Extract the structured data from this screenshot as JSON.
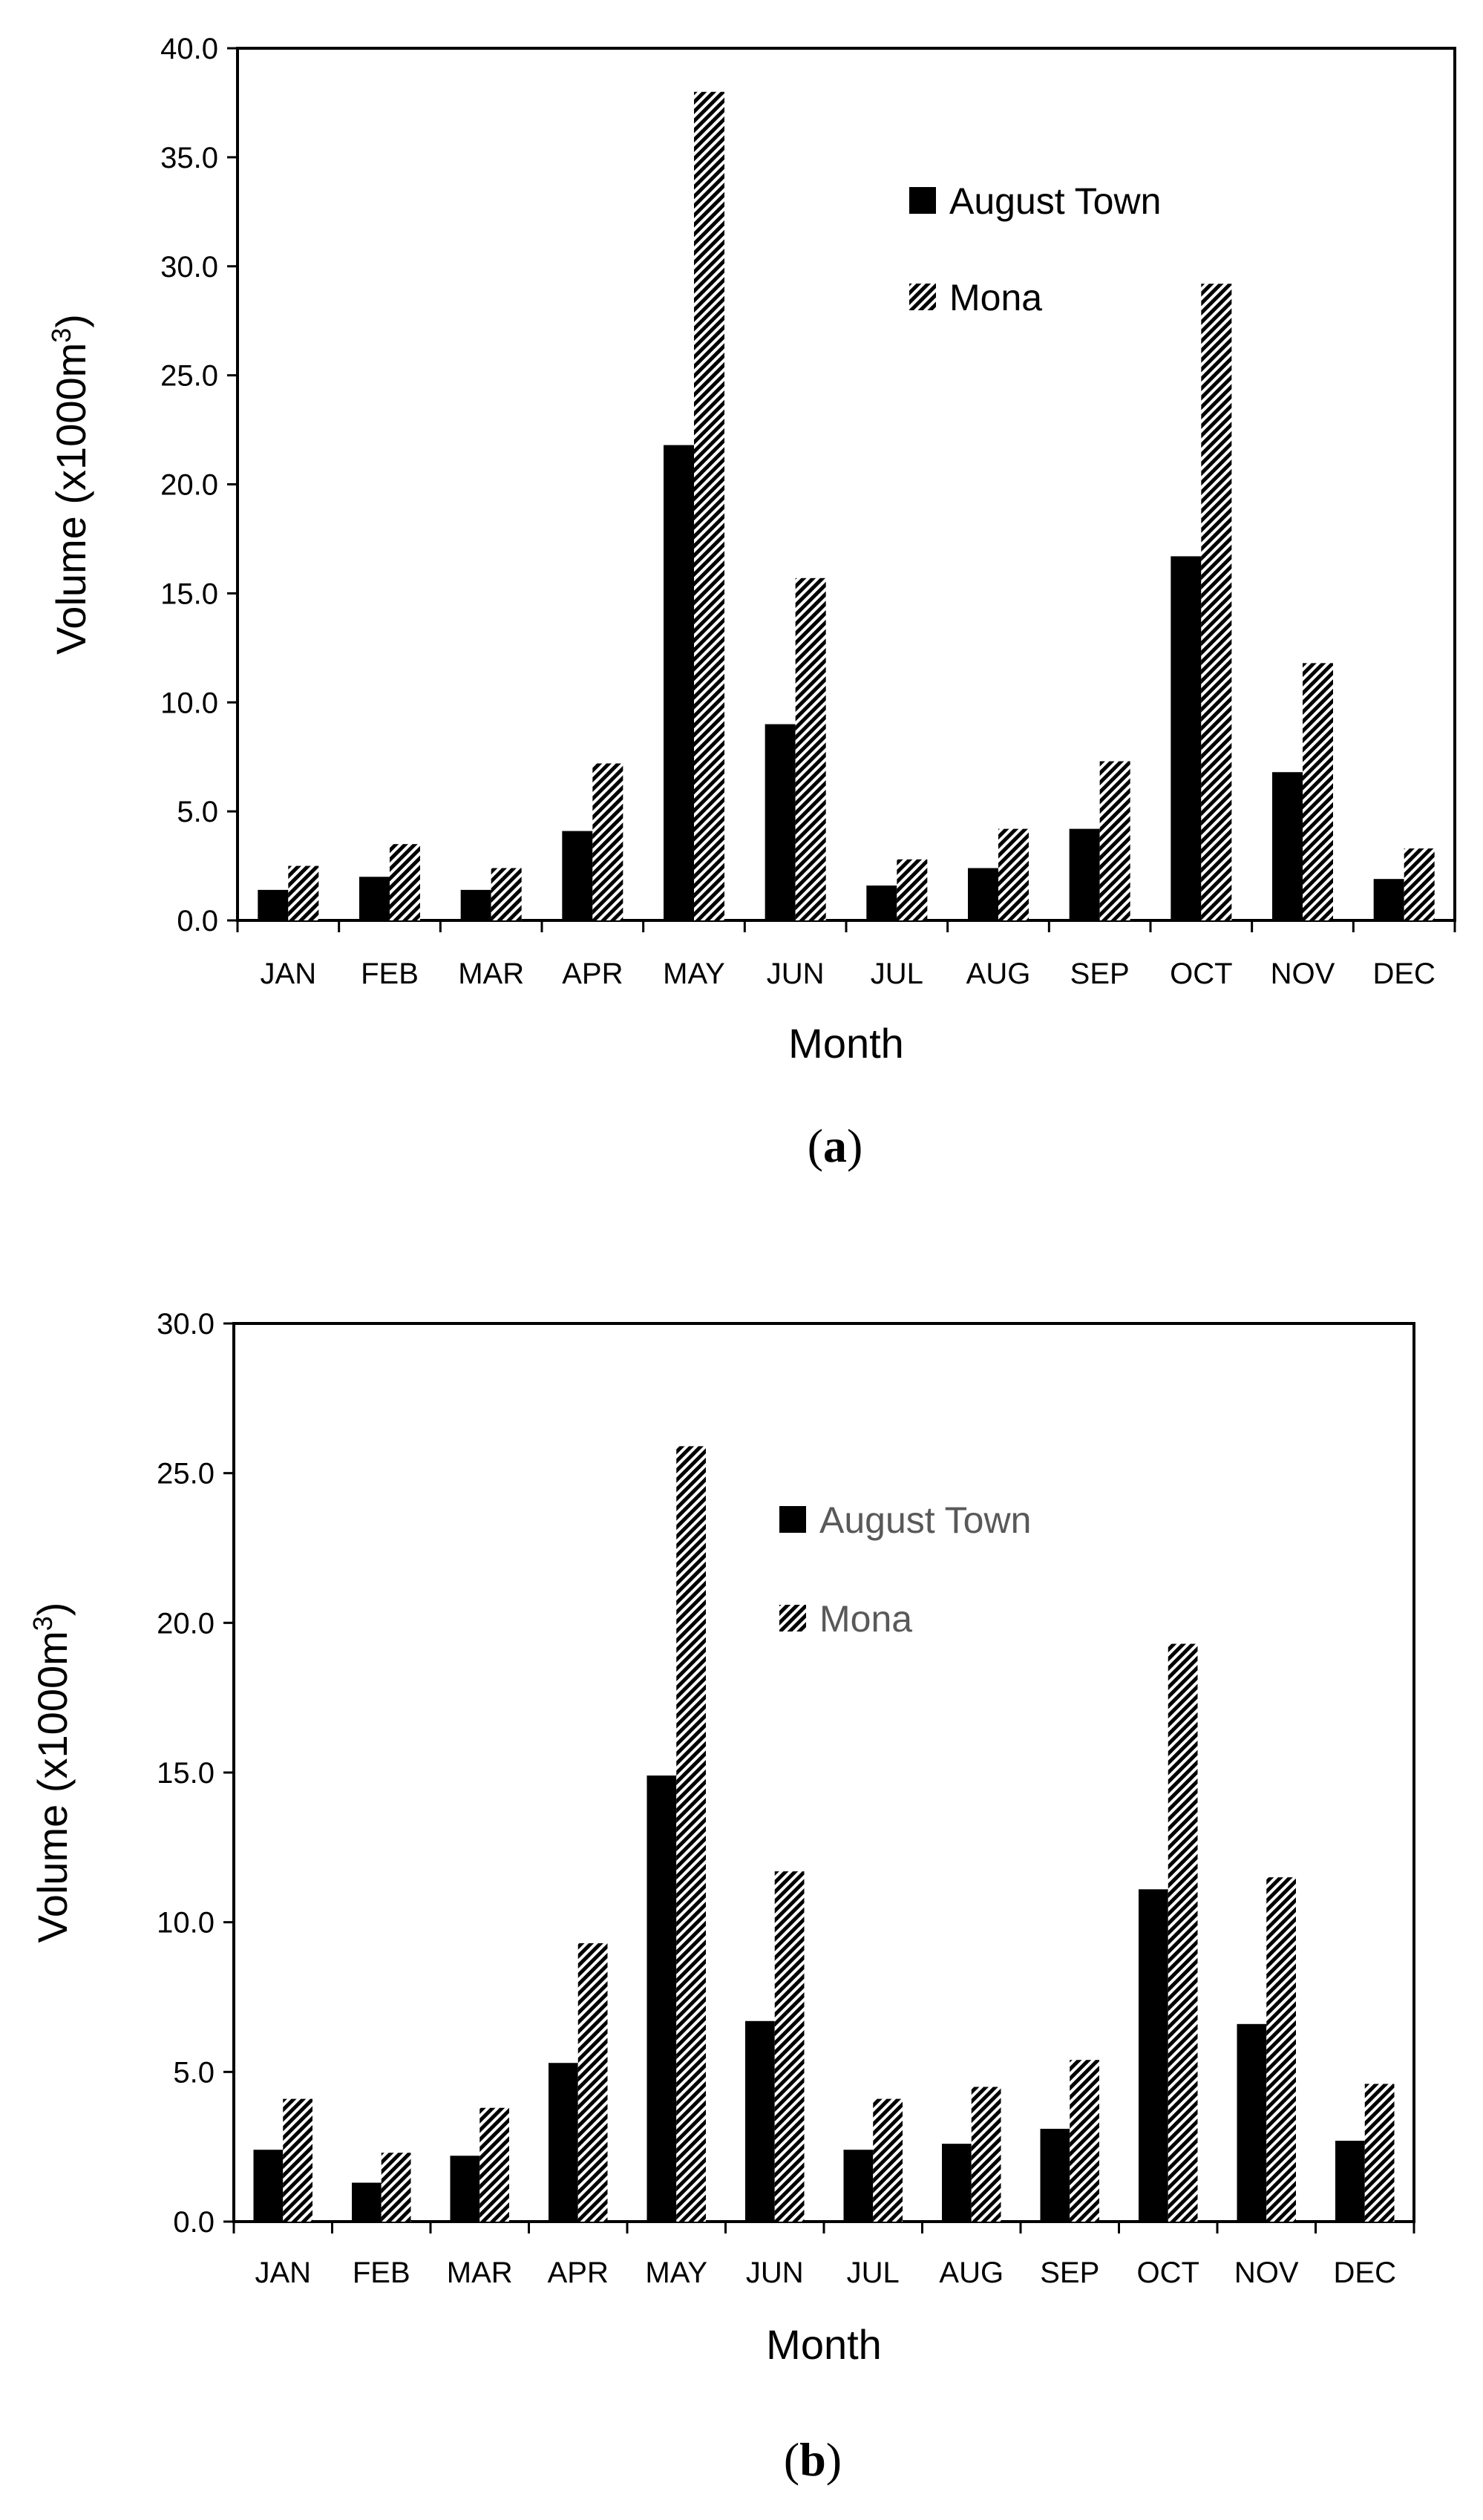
{
  "chart_data": [
    {
      "type": "bar",
      "panel_label": "a",
      "categories": [
        "JAN",
        "FEB",
        "MAR",
        "APR",
        "MAY",
        "JUN",
        "JUL",
        "AUG",
        "SEP",
        "OCT",
        "NOV",
        "DEC"
      ],
      "series": [
        {
          "name": "August Town",
          "values": [
            1.4,
            2.0,
            1.4,
            4.1,
            21.8,
            9.0,
            1.6,
            2.4,
            4.2,
            16.7,
            6.8,
            1.9
          ]
        },
        {
          "name": "Mona",
          "values": [
            2.5,
            3.5,
            2.4,
            7.2,
            38.0,
            15.7,
            2.8,
            4.2,
            7.3,
            29.2,
            11.8,
            3.3
          ]
        }
      ],
      "title": "",
      "xlabel": "Month",
      "ylabel": "Volume (x1000m",
      "ylabel_sup": "3",
      "ylabel_end": ")",
      "ylim": [
        0,
        40
      ],
      "ytick_labels": [
        "0.0",
        "5.0",
        "10.0",
        "15.0",
        "20.0",
        "25.0",
        "30.0",
        "35.0",
        "40.0"
      ],
      "legend": {
        "position": "top-right",
        "color": "#000000"
      }
    },
    {
      "type": "bar",
      "panel_label": "b",
      "categories": [
        "JAN",
        "FEB",
        "MAR",
        "APR",
        "MAY",
        "JUN",
        "JUL",
        "AUG",
        "SEP",
        "OCT",
        "NOV",
        "DEC"
      ],
      "series": [
        {
          "name": "August Town",
          "values": [
            2.4,
            1.3,
            2.2,
            5.3,
            14.9,
            6.7,
            2.4,
            2.6,
            3.1,
            11.1,
            6.6,
            2.7
          ]
        },
        {
          "name": "Mona",
          "values": [
            4.1,
            2.3,
            3.8,
            9.3,
            25.9,
            11.7,
            4.1,
            4.5,
            5.4,
            19.3,
            11.5,
            4.6
          ]
        }
      ],
      "title": "",
      "xlabel": "Month",
      "ylabel": "Volume (x1000m",
      "ylabel_sup": "3",
      "ylabel_end": ")",
      "ylim": [
        0,
        30
      ],
      "ytick_labels": [
        "0.0",
        "5.0",
        "10.0",
        "15.0",
        "20.0",
        "25.0",
        "30.0"
      ],
      "legend": {
        "position": "top-right",
        "color": "#595959"
      }
    }
  ]
}
